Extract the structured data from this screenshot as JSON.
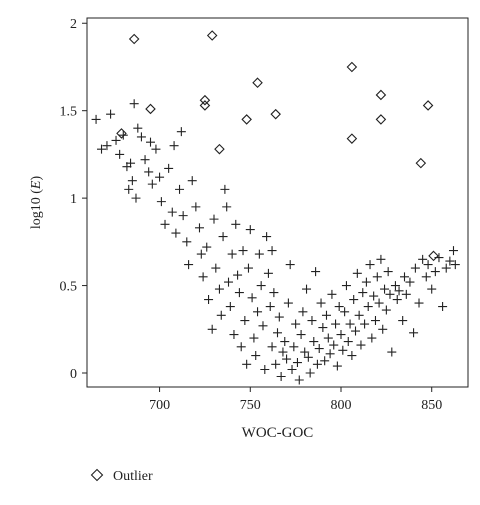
{
  "chart_data": {
    "type": "scatter",
    "xlabel": "WOC-GOC",
    "ylabel_prefix": "log10 (",
    "ylabel_var": "E",
    "ylabel_suffix": ")",
    "xlim": [
      660,
      870
    ],
    "ylim": [
      -0.08,
      2.03
    ],
    "xticks": [
      700,
      750,
      800,
      850
    ],
    "yticks": [
      0,
      0.5,
      1,
      1.5,
      2
    ],
    "ytick_labels": [
      "0",
      "0.5",
      "1",
      "1.5",
      "2"
    ],
    "grid": false,
    "legend": {
      "placement": "bottom-left",
      "entries": [
        {
          "marker": "diamond",
          "label": "Outlier"
        }
      ]
    },
    "marker_color": "#222222",
    "series": [
      {
        "marker": "cross",
        "points": [
          [
            665,
            1.45
          ],
          [
            668,
            1.28
          ],
          [
            671,
            1.3
          ],
          [
            673,
            1.48
          ],
          [
            676,
            1.33
          ],
          [
            680,
            1.36
          ],
          [
            678,
            1.25
          ],
          [
            682,
            1.18
          ],
          [
            684,
            1.2
          ],
          [
            686,
            1.54
          ],
          [
            688,
            1.4
          ],
          [
            690,
            1.35
          ],
          [
            685,
            1.1
          ],
          [
            683,
            1.05
          ],
          [
            687,
            1.0
          ],
          [
            692,
            1.22
          ],
          [
            694,
            1.15
          ],
          [
            696,
            1.08
          ],
          [
            695,
            1.32
          ],
          [
            698,
            1.28
          ],
          [
            700,
            1.12
          ],
          [
            701,
            0.98
          ],
          [
            703,
            0.85
          ],
          [
            705,
            1.17
          ],
          [
            707,
            0.92
          ],
          [
            709,
            0.8
          ],
          [
            708,
            1.3
          ],
          [
            712,
            1.38
          ],
          [
            711,
            1.05
          ],
          [
            713,
            0.9
          ],
          [
            715,
            0.75
          ],
          [
            716,
            0.62
          ],
          [
            718,
            1.1
          ],
          [
            720,
            0.95
          ],
          [
            722,
            0.83
          ],
          [
            723,
            0.68
          ],
          [
            724,
            0.55
          ],
          [
            726,
            0.72
          ],
          [
            727,
            0.42
          ],
          [
            729,
            0.25
          ],
          [
            730,
            0.88
          ],
          [
            731,
            0.6
          ],
          [
            733,
            0.48
          ],
          [
            734,
            0.33
          ],
          [
            736,
            1.05
          ],
          [
            735,
            0.78
          ],
          [
            738,
            0.52
          ],
          [
            737,
            0.95
          ],
          [
            740,
            0.68
          ],
          [
            739,
            0.38
          ],
          [
            741,
            0.22
          ],
          [
            742,
            0.85
          ],
          [
            743,
            0.56
          ],
          [
            744,
            0.46
          ],
          [
            745,
            0.15
          ],
          [
            746,
            0.7
          ],
          [
            747,
            0.3
          ],
          [
            748,
            0.05
          ],
          [
            749,
            0.6
          ],
          [
            750,
            0.82
          ],
          [
            751,
            0.43
          ],
          [
            752,
            0.2
          ],
          [
            753,
            0.1
          ],
          [
            754,
            0.35
          ],
          [
            755,
            0.68
          ],
          [
            756,
            0.5
          ],
          [
            757,
            0.27
          ],
          [
            758,
            0.02
          ],
          [
            759,
            0.78
          ],
          [
            760,
            0.57
          ],
          [
            761,
            0.38
          ],
          [
            762,
            0.15
          ],
          [
            762,
            0.7
          ],
          [
            763,
            0.46
          ],
          [
            764,
            0.05
          ],
          [
            765,
            0.23
          ],
          [
            766,
            0.32
          ],
          [
            767,
            -0.02
          ],
          [
            768,
            0.12
          ],
          [
            769,
            0.18
          ],
          [
            770,
            0.08
          ],
          [
            771,
            0.4
          ],
          [
            772,
            0.62
          ],
          [
            773,
            0.02
          ],
          [
            774,
            0.15
          ],
          [
            775,
            0.28
          ],
          [
            776,
            0.06
          ],
          [
            777,
            -0.04
          ],
          [
            778,
            0.22
          ],
          [
            779,
            0.35
          ],
          [
            780,
            0.12
          ],
          [
            781,
            0.48
          ],
          [
            782,
            0.09
          ],
          [
            783,
            0.0
          ],
          [
            784,
            0.3
          ],
          [
            785,
            0.18
          ],
          [
            786,
            0.58
          ],
          [
            787,
            0.05
          ],
          [
            788,
            0.14
          ],
          [
            789,
            0.4
          ],
          [
            790,
            0.26
          ],
          [
            791,
            0.07
          ],
          [
            792,
            0.33
          ],
          [
            793,
            0.2
          ],
          [
            794,
            0.11
          ],
          [
            795,
            0.45
          ],
          [
            796,
            0.16
          ],
          [
            797,
            0.28
          ],
          [
            798,
            0.04
          ],
          [
            799,
            0.38
          ],
          [
            800,
            0.22
          ],
          [
            801,
            0.13
          ],
          [
            802,
            0.35
          ],
          [
            803,
            0.5
          ],
          [
            804,
            0.18
          ],
          [
            805,
            0.28
          ],
          [
            806,
            0.1
          ],
          [
            807,
            0.42
          ],
          [
            808,
            0.24
          ],
          [
            809,
            0.57
          ],
          [
            810,
            0.33
          ],
          [
            811,
            0.16
          ],
          [
            812,
            0.46
          ],
          [
            813,
            0.28
          ],
          [
            814,
            0.52
          ],
          [
            815,
            0.38
          ],
          [
            816,
            0.62
          ],
          [
            817,
            0.2
          ],
          [
            818,
            0.44
          ],
          [
            819,
            0.3
          ],
          [
            820,
            0.55
          ],
          [
            821,
            0.4
          ],
          [
            822,
            0.65
          ],
          [
            823,
            0.25
          ],
          [
            824,
            0.48
          ],
          [
            825,
            0.36
          ],
          [
            826,
            0.58
          ],
          [
            827,
            0.45
          ],
          [
            828,
            0.12
          ],
          [
            830,
            0.5
          ],
          [
            831,
            0.42
          ],
          [
            832,
            0.47
          ],
          [
            834,
            0.3
          ],
          [
            835,
            0.55
          ],
          [
            836,
            0.45
          ],
          [
            838,
            0.52
          ],
          [
            840,
            0.23
          ],
          [
            841,
            0.6
          ],
          [
            843,
            0.4
          ],
          [
            845,
            0.65
          ],
          [
            847,
            0.55
          ],
          [
            848,
            0.62
          ],
          [
            850,
            0.48
          ],
          [
            852,
            0.58
          ],
          [
            854,
            0.66
          ],
          [
            856,
            0.38
          ],
          [
            858,
            0.6
          ],
          [
            860,
            0.64
          ],
          [
            862,
            0.7
          ],
          [
            863,
            0.62
          ]
        ]
      },
      {
        "name": "Outlier",
        "marker": "diamond",
        "points": [
          [
            686,
            1.91
          ],
          [
            679,
            1.37
          ],
          [
            695,
            1.51
          ],
          [
            725,
            1.56
          ],
          [
            725,
            1.53
          ],
          [
            729,
            1.93
          ],
          [
            733,
            1.28
          ],
          [
            748,
            1.45
          ],
          [
            754,
            1.66
          ],
          [
            764,
            1.48
          ],
          [
            806,
            1.75
          ],
          [
            806,
            1.34
          ],
          [
            822,
            1.59
          ],
          [
            822,
            1.45
          ],
          [
            848,
            1.53
          ],
          [
            844,
            1.2
          ],
          [
            851,
            0.67
          ]
        ]
      }
    ]
  }
}
